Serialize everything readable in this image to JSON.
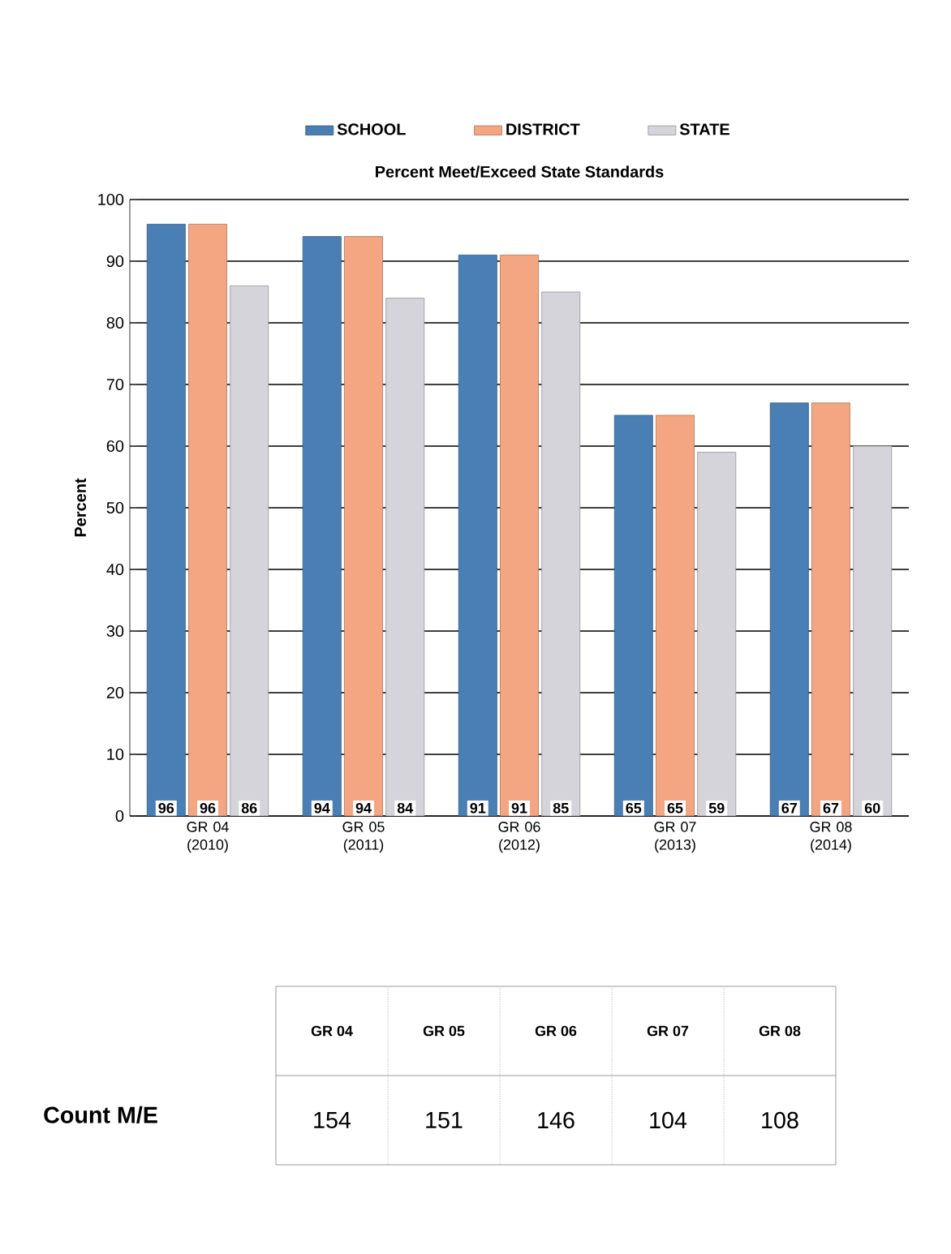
{
  "chart_data": [
    {
      "type": "bar",
      "title": "Percent Meet/Exceed State Standards",
      "ylabel": "Percent",
      "categories": [
        "GR 04 (2010)",
        "GR 05 (2011)",
        "GR 06 (2012)",
        "GR 07 (2013)",
        "GR 08 (2014)"
      ],
      "series": [
        {
          "name": "SCHOOL",
          "color": "#4a7fb5",
          "values": [
            96,
            94,
            91,
            65,
            67
          ]
        },
        {
          "name": "DISTRICT",
          "color": "#f4a582",
          "values": [
            96,
            94,
            91,
            65,
            67
          ]
        },
        {
          "name": "STATE",
          "color": "#d4d4da",
          "values": [
            86,
            84,
            85,
            59,
            60
          ]
        }
      ],
      "ylim": [
        0,
        100
      ],
      "yticks": [
        0,
        10,
        20,
        30,
        40,
        50,
        60,
        70,
        80,
        90,
        100
      ],
      "grid": "y",
      "legend": "top",
      "data_labels": true
    },
    {
      "type": "other",
      "ylabel": "Count M/E",
      "categories": [
        "GR 04",
        "GR 05",
        "GR 06",
        "GR 07",
        "GR 08"
      ],
      "values": [
        154,
        151,
        146,
        104,
        108
      ],
      "data_labels": true
    }
  ]
}
